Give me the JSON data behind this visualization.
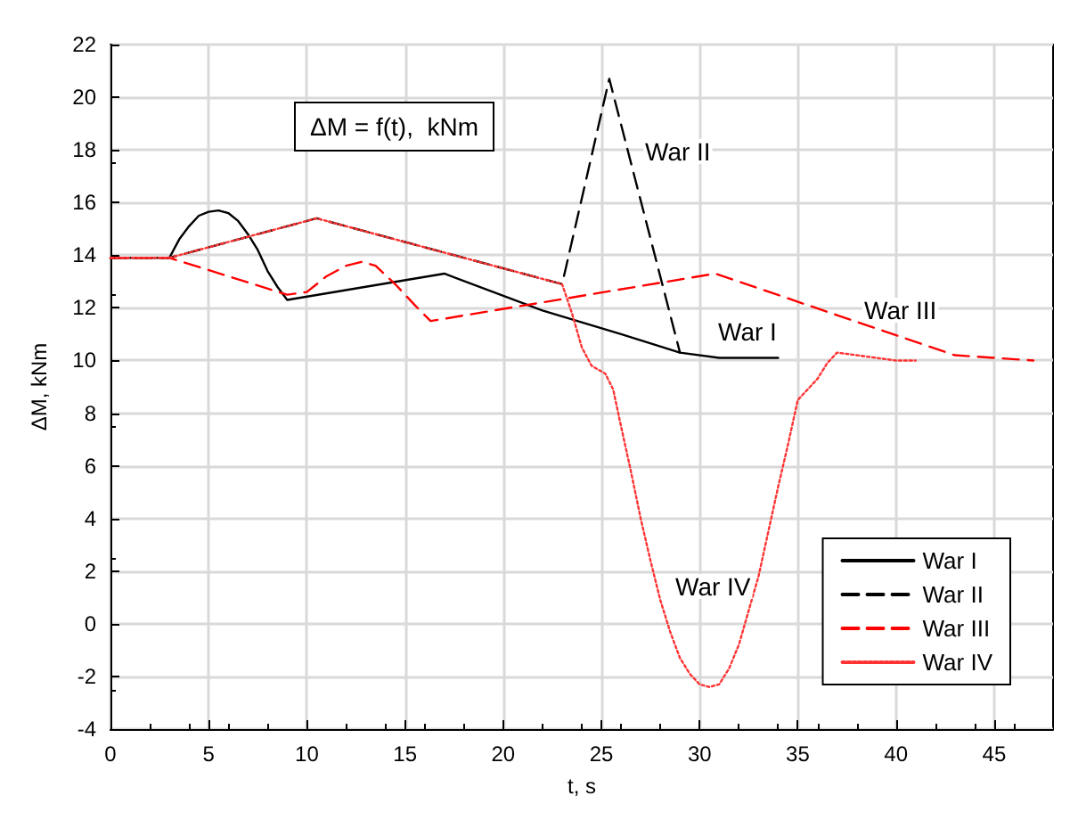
{
  "chart_data": {
    "type": "line",
    "xlabel": "t, s",
    "ylabel": "ΔM, kNm",
    "xlim": [
      0,
      48
    ],
    "xticks": [
      0,
      5,
      10,
      15,
      20,
      25,
      30,
      35,
      40,
      45
    ],
    "ylim": [
      -4,
      22
    ],
    "yticks": [
      -4,
      -2,
      0,
      2,
      4,
      6,
      8,
      10,
      12,
      14,
      16,
      18,
      20,
      22
    ],
    "grid": true,
    "legend": "bottom right",
    "marker": "none",
    "annotations": [
      "ΔM = f(t),  kNm",
      "War II",
      "War I",
      "War III",
      "War IV"
    ],
    "series": [
      {
        "name": "War I",
        "color": "#000000",
        "line_style": "solid",
        "x": [
          0,
          3,
          3.5,
          4,
          4.5,
          5,
          5.5,
          6,
          6.5,
          7,
          7.5,
          8,
          8.5,
          9,
          17,
          22,
          26,
          29,
          31,
          34
        ],
        "values": [
          13.9,
          13.9,
          14.6,
          15.1,
          15.5,
          15.65,
          15.7,
          15.6,
          15.3,
          14.8,
          14.2,
          13.4,
          12.8,
          12.3,
          13.3,
          11.9,
          11,
          10.3,
          10.1,
          10.1
        ]
      },
      {
        "name": "War II",
        "color": "#000000",
        "line_style": "dashed",
        "x": [
          0,
          3,
          10.5,
          23,
          25.4,
          29
        ],
        "values": [
          13.9,
          13.9,
          15.4,
          12.9,
          20.7,
          10.3
        ]
      },
      {
        "name": "War III",
        "color": "#ff0000",
        "line_style": "dashed",
        "x": [
          0,
          3,
          9,
          10,
          11,
          12,
          12.8,
          13.5,
          14.5,
          15.5,
          16.3,
          30.8,
          43,
          47
        ],
        "values": [
          13.9,
          13.9,
          12.5,
          12.6,
          13.2,
          13.6,
          13.75,
          13.6,
          12.9,
          12.1,
          11.5,
          13.3,
          10.2,
          10
        ]
      },
      {
        "name": "War IV",
        "color": "#ff3333",
        "line_style": "dotted",
        "x": [
          0,
          3,
          10.5,
          23,
          23.5,
          24,
          24.5,
          25.2,
          25.6,
          26,
          26.5,
          27,
          27.5,
          28,
          28.5,
          29,
          29.5,
          30,
          30.5,
          31,
          31.5,
          32,
          32.5,
          33,
          33.5,
          34,
          34.5,
          35,
          35.5,
          36,
          36.5,
          37,
          38,
          39,
          40,
          41
        ],
        "values": [
          13.9,
          13.9,
          15.4,
          12.9,
          11.8,
          10.5,
          9.8,
          9.5,
          8.9,
          7.5,
          5.8,
          4,
          2.4,
          0.9,
          -0.3,
          -1.3,
          -1.9,
          -2.3,
          -2.4,
          -2.3,
          -1.7,
          -0.8,
          0.5,
          1.8,
          3.5,
          5.2,
          6.8,
          8.5,
          8.9,
          9.3,
          9.9,
          10.3,
          10.2,
          10.1,
          10,
          10
        ]
      }
    ]
  }
}
